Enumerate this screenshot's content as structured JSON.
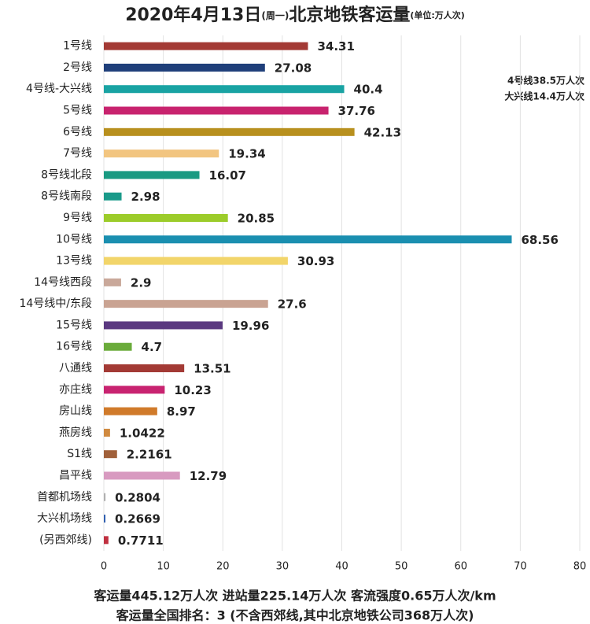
{
  "chart_data": {
    "type": "bar",
    "orientation": "horizontal",
    "title_parts": [
      "2020年4月13日",
      "(周一)",
      "北京地铁客运量",
      "(单位:万人次)"
    ],
    "categories": [
      "1号线",
      "2号线",
      "4号线-大兴线",
      "5号线",
      "6号线",
      "7号线",
      "8号线北段",
      "8号线南段",
      "9号线",
      "10号线",
      "13号线",
      "14号线西段",
      "14号线中/东段",
      "15号线",
      "16号线",
      "八通线",
      "亦庄线",
      "房山线",
      "燕房线",
      "S1线",
      "昌平线",
      "首都机场线",
      "大兴机场线",
      "(另西郊线)"
    ],
    "values": [
      34.31,
      27.08,
      40.4,
      37.76,
      42.13,
      19.34,
      16.07,
      2.98,
      20.85,
      68.56,
      30.93,
      2.9,
      27.6,
      19.96,
      4.7,
      13.51,
      10.23,
      8.97,
      1.0422,
      2.2161,
      12.79,
      0.2804,
      0.2669,
      0.7711
    ],
    "colors": [
      "#a33a35",
      "#1f3f7a",
      "#19a3a3",
      "#c8236e",
      "#b8901e",
      "#f2c580",
      "#1a9a82",
      "#1a9a8a",
      "#9ccc2a",
      "#1a8fb0",
      "#f2d56a",
      "#c9a89a",
      "#c9a392",
      "#5a3880",
      "#6aab3a",
      "#a33a35",
      "#c82370",
      "#d07a2a",
      "#d08a40",
      "#a0603a",
      "#d89ac0",
      "#b0b0b0",
      "#3060b0",
      "#c03040"
    ],
    "xlim": [
      0,
      80
    ],
    "xticks": [
      0,
      10,
      20,
      30,
      40,
      50,
      60,
      70,
      80
    ],
    "grid": true,
    "annotations": [
      "4号线38.5万人次",
      "大兴线14.4万人次"
    ],
    "footer": [
      "客运量445.12万人次   进站量225.14万人次   客流强度0.65万人次/km",
      "客运量全国排名：3 (不含西郊线,其中北京地铁公司368万人次)"
    ]
  }
}
